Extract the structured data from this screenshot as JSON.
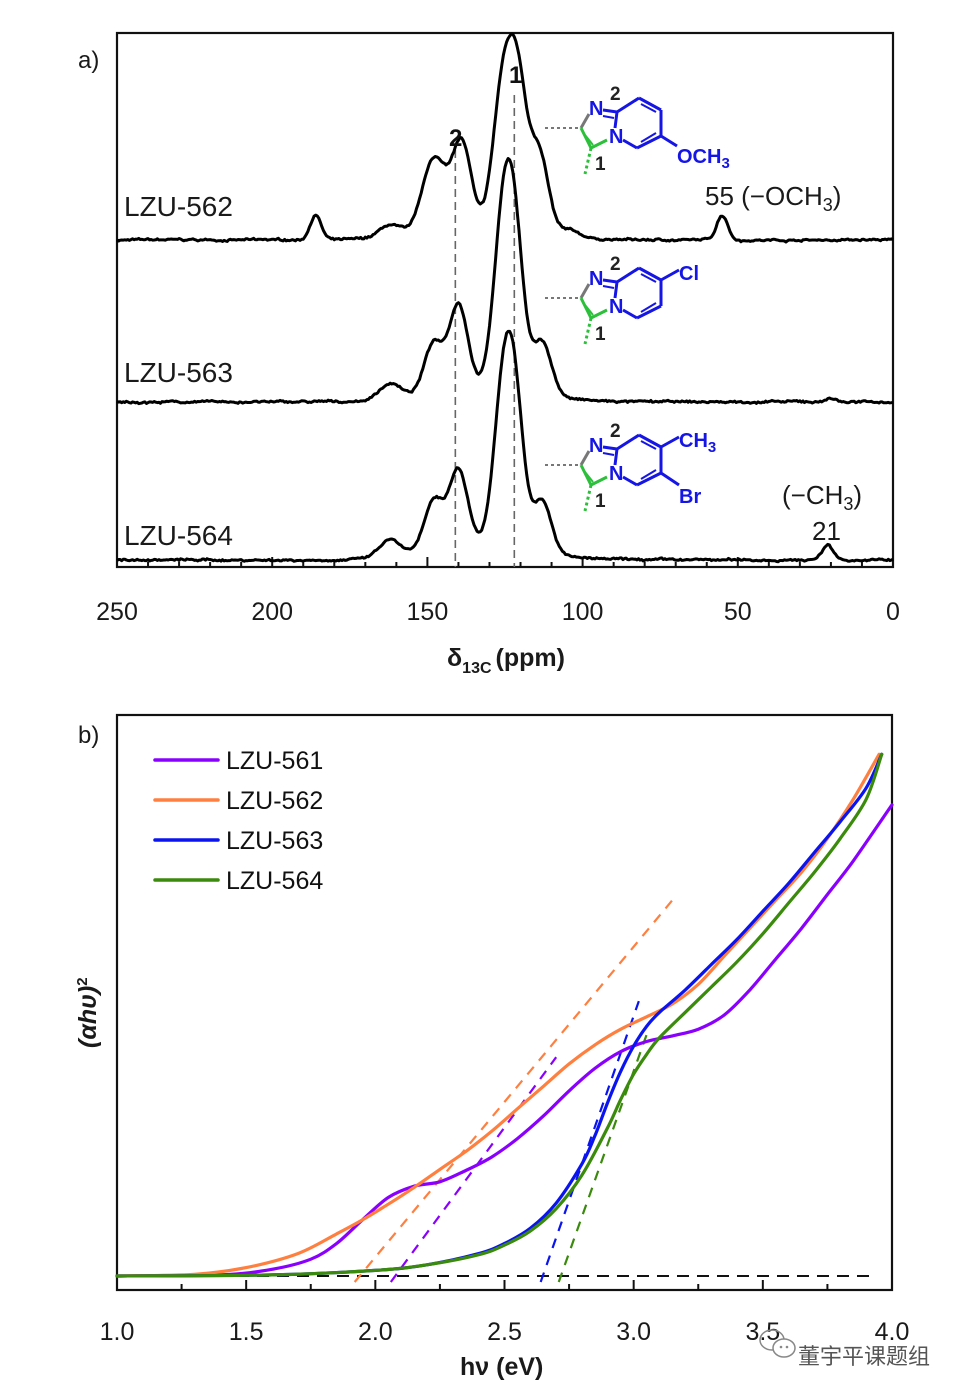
{
  "chart_data": [
    {
      "panel": "a)",
      "type": "line",
      "title": "",
      "xlabel": "δ13C (ppm)",
      "xlabel_main": "δ",
      "xlabel_sub": "13C",
      "xlabel_unit": "(ppm)",
      "ylabel": "",
      "xlim": [
        250,
        0
      ],
      "x_reversed": true,
      "xticks": [
        250,
        200,
        150,
        100,
        50,
        0
      ],
      "grid": false,
      "reference_lines": [
        {
          "x": 141,
          "label": "2",
          "style": "dashed"
        },
        {
          "x": 122,
          "label": "1",
          "style": "dashed"
        }
      ],
      "series": [
        {
          "name": "LZU-562",
          "peaks": [
            {
              "x": 186,
              "height": 0.2
            },
            {
              "x": 162,
              "height": 0.1
            },
            {
              "x": 150,
              "height": 0.34
            },
            {
              "x": 146,
              "height": 0.38
            },
            {
              "x": 139,
              "height": 0.68
            },
            {
              "x": 126,
              "height": 1.0
            },
            {
              "x": 121,
              "height": 1.16
            },
            {
              "x": 114,
              "height": 0.62
            },
            {
              "x": 104,
              "height": 0.05
            },
            {
              "x": 55,
              "height": 0.2
            }
          ],
          "annotation": "55 (−OCH3)",
          "annotation_main": "55 (−OCH",
          "annotation_sub": "3",
          "annotation_end": ")",
          "substituents": [
            "OCH3"
          ]
        },
        {
          "name": "LZU-563",
          "peaks": [
            {
              "x": 162,
              "height": 0.13
            },
            {
              "x": 148,
              "height": 0.4
            },
            {
              "x": 140,
              "height": 0.68
            },
            {
              "x": 126,
              "height": 1.1
            },
            {
              "x": 122,
              "height": 1.2
            },
            {
              "x": 113,
              "height": 0.42
            },
            {
              "x": 20,
              "height": 0.03
            }
          ],
          "substituents": [
            "Cl"
          ]
        },
        {
          "name": "LZU-564",
          "peaks": [
            {
              "x": 162,
              "height": 0.14
            },
            {
              "x": 148,
              "height": 0.4
            },
            {
              "x": 140,
              "height": 0.62
            },
            {
              "x": 126,
              "height": 1.0
            },
            {
              "x": 122,
              "height": 1.16
            },
            {
              "x": 113,
              "height": 0.42
            },
            {
              "x": 21,
              "height": 0.12
            }
          ],
          "annotation": "(−CH3) 21",
          "annotation_line1_main": "(−CH",
          "annotation_line1_sub": "3",
          "annotation_line1_end": ")",
          "annotation_line2": "21",
          "substituents": [
            "CH3",
            "Br"
          ]
        }
      ],
      "structure_labels": {
        "N": "N",
        "pos1": "1",
        "pos2": "2"
      }
    },
    {
      "panel": "b)",
      "type": "line",
      "title": "",
      "xlabel": "hν (eV)",
      "ylabel": "(αhυ)²",
      "ylabel_main": "(αhυ)",
      "ylabel_sup": "2",
      "xlim": [
        1.0,
        4.0
      ],
      "xticks": [
        "1.0",
        "1.5",
        "2.0",
        "2.5",
        "3.0",
        "3.5",
        "4.0"
      ],
      "ylim": [
        0,
        1.0
      ],
      "grid": false,
      "legend_position": "top-left",
      "series": [
        {
          "name": "LZU-561",
          "color": "#8a00ff",
          "x": [
            1.0,
            1.4,
            1.6,
            1.75,
            1.85,
            1.95,
            2.05,
            2.15,
            2.25,
            2.35,
            2.45,
            2.55,
            2.65,
            2.75,
            2.85,
            2.95,
            3.05,
            3.15,
            3.25,
            3.35,
            3.45,
            3.55,
            3.65,
            3.75,
            3.85,
            4.0
          ],
          "y": [
            0.0,
            0.002,
            0.012,
            0.03,
            0.058,
            0.1,
            0.14,
            0.16,
            0.168,
            0.188,
            0.212,
            0.245,
            0.285,
            0.33,
            0.37,
            0.4,
            0.418,
            0.428,
            0.44,
            0.465,
            0.51,
            0.565,
            0.62,
            0.68,
            0.74,
            0.84
          ],
          "bandgap_eV": 2.06,
          "tangent_x": [
            2.06,
            2.7
          ]
        },
        {
          "name": "LZU-562",
          "color": "#ff7f3f",
          "x": [
            1.0,
            1.3,
            1.5,
            1.7,
            1.85,
            1.95,
            2.05,
            2.15,
            2.25,
            2.35,
            2.45,
            2.55,
            2.65,
            2.75,
            2.85,
            2.95,
            3.05,
            3.15,
            3.25,
            3.35,
            3.45,
            3.55,
            3.65,
            3.75,
            3.85,
            3.95
          ],
          "y": [
            0.0,
            0.003,
            0.015,
            0.04,
            0.075,
            0.1,
            0.128,
            0.158,
            0.19,
            0.222,
            0.258,
            0.298,
            0.338,
            0.378,
            0.412,
            0.44,
            0.462,
            0.485,
            0.52,
            0.57,
            0.62,
            0.67,
            0.72,
            0.78,
            0.85,
            0.93
          ],
          "bandgap_eV": 1.92,
          "tangent_x": [
            1.92,
            3.15
          ]
        },
        {
          "name": "LZU-563",
          "color": "#0a14f0",
          "x": [
            1.0,
            1.6,
            2.0,
            2.2,
            2.4,
            2.5,
            2.6,
            2.7,
            2.8,
            2.85,
            2.9,
            2.95,
            3.0,
            3.05,
            3.1,
            3.2,
            3.3,
            3.4,
            3.5,
            3.6,
            3.7,
            3.8,
            3.9,
            3.96
          ],
          "y": [
            0.0,
            0.002,
            0.01,
            0.02,
            0.04,
            0.058,
            0.085,
            0.13,
            0.2,
            0.25,
            0.31,
            0.365,
            0.41,
            0.445,
            0.47,
            0.51,
            0.555,
            0.6,
            0.65,
            0.7,
            0.755,
            0.81,
            0.87,
            0.93
          ],
          "bandgap_eV": 2.64,
          "tangent_x": [
            2.64,
            3.02
          ]
        },
        {
          "name": "LZU-564",
          "color": "#3a8a0c",
          "x": [
            1.0,
            1.6,
            2.0,
            2.2,
            2.4,
            2.5,
            2.6,
            2.7,
            2.8,
            2.9,
            2.95,
            3.0,
            3.05,
            3.1,
            3.2,
            3.3,
            3.4,
            3.5,
            3.6,
            3.7,
            3.8,
            3.9,
            3.96
          ],
          "y": [
            0.0,
            0.002,
            0.01,
            0.02,
            0.038,
            0.055,
            0.08,
            0.12,
            0.18,
            0.265,
            0.315,
            0.36,
            0.395,
            0.425,
            0.47,
            0.515,
            0.56,
            0.61,
            0.665,
            0.72,
            0.78,
            0.85,
            0.93
          ],
          "bandgap_eV": 2.71,
          "tangent_x": [
            2.71,
            3.05
          ]
        }
      ]
    }
  ],
  "watermark": "董宇平课题组"
}
